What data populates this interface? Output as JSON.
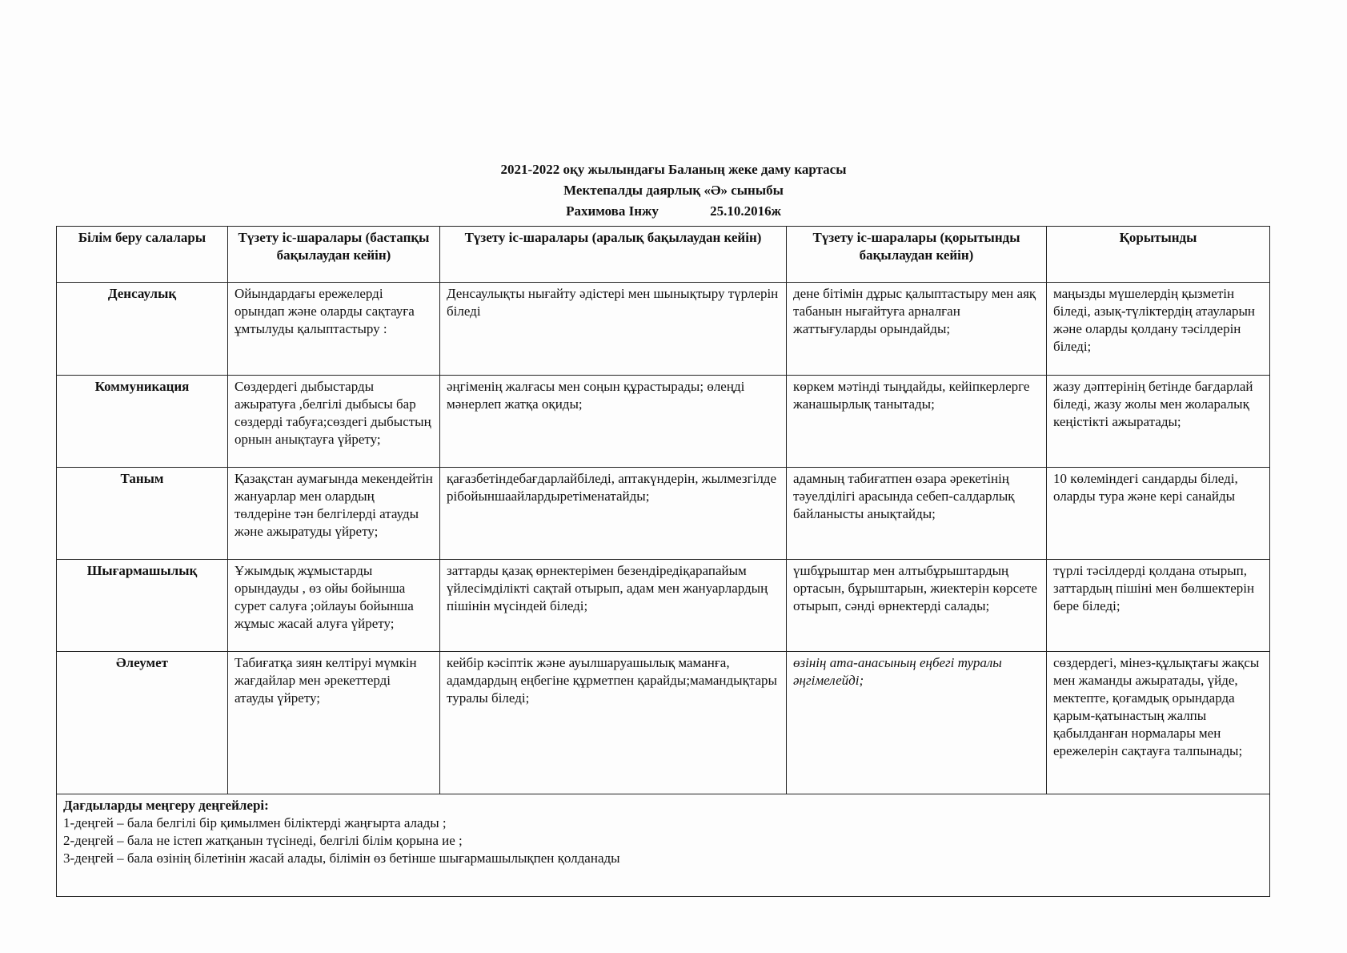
{
  "header": {
    "title": "2021-2022 оқу жылындағы Баланың жеке даму картасы",
    "class_line": "Мектепалды даярлық  «Ә» сыныбы",
    "child_name": "Рахимова Інжу",
    "birth_date": "25.10.2016ж"
  },
  "table": {
    "columns": [
      "Білім беру салалары",
      "Түзету іс-шаралары (бастапқы бақылаудан кейін)",
      "Түзету іс-шаралары (аралық бақылаудан кейін)",
      "Түзету іс-шаралары (қорытынды бақылаудан кейін)",
      "Қорытынды"
    ],
    "rows": [
      {
        "area": "Денсаулық",
        "initial": "Ойындардағы ережелерді орындап және оларды сақтауға  ұмтылуды қалыптастыру :",
        "intermediate": "Денсаулықты нығайту әдістері мен шынықтыру түрлерін біледі",
        "final": "дене бітімін дұрыс қалыптастыру мен аяқ табанын нығайтуға арналған жаттығуларды орындайды;",
        "conclusion": "маңызды мүшелердің қызметін біледі, азық-түліктердің атауларын және оларды қолдану тәсілдерін біледі;"
      },
      {
        "area": "Коммуникация",
        "initial": "Сөздердегі дыбыстарды ажыратуға ,белгілі дыбысы бар сөздерді  табуға;сөздегі дыбыстың орнын анықтауға үйрету;",
        "intermediate": "әңгіменің жалғасы мен соңын құрастырады; өлеңді мәнерлеп жатқа оқиды;",
        "final": "көркем мәтінді тыңдайды, кейіпкерлерге жанашырлық танытады;",
        "conclusion": "жазу дәптерінің бетінде бағдарлай біледі, жазу жолы мен жоларалық кеңістікті ажыратады;"
      },
      {
        "area": "Таным",
        "initial": "Қазақстан аумағында мекендейтін жануарлар мен олардың төлдеріне тән белгілерді атауды және ажыратуды үйрету;",
        "intermediate": "қағазбетіндебағдарлайбіледі, аптакүндерін, жылмезгілдерібойыншаайлардыретіменатайды;",
        "final": "адамның табиғатпен өзара әрекетінің тәуелділігі арасында себеп-салдарлық байланысты анықтайды;",
        "conclusion": "10 көлеміндегі сандарды біледі, оларды тура және кері санайды"
      },
      {
        "area": "Шығармашылық",
        "initial": "Ұжымдық жұмыстарды орындауды , өз ойы бойынша сурет салуға ;ойлауы бойынша жұмыс жасай алуға үйрету;",
        "intermediate": "заттарды қазақ өрнектерімен безендіредіқарапайым үйлесімділікті сақтай отырып, адам мен жануарлардың пішінін мүсіндей біледі;",
        "final": "үшбұрыштар мен алтыбұрыштардың ортасын, бұрыштарын, жиектерін көрсете отырып, сәнді өрнектерді салады;",
        "conclusion": "түрлі тәсілдерді қолдана отырып, заттардың пішіні мен бөлшектерін бере біледі;"
      },
      {
        "area": "Әлеумет",
        "initial": "Табиғатқа зиян келтіруі мүмкін жағдайлар мен әрекеттерді атауды үйрету;",
        "intermediate": "кейбір кәсіптік және ауылшаруашылық маманға, адамдардың еңбегіне құрметпен қарайды;мамандықтары туралы біледі;",
        "final": "өзінің ата-анасының еңбегі туралы әңгімелейді;",
        "conclusion": "сөздердегі, мінез-құлықтағы жақсы мен жаманды ажыратады, үйде, мектепте, қоғамдық орындарда қарым-қатынастың жалпы қабылданған нормалары мен ережелерін сақтауға талпынады;"
      }
    ]
  },
  "levels": {
    "title": "Дағдыларды меңгеру деңгейлері:",
    "items": [
      "1-деңгей – бала белгілі бір қимылмен біліктерді жаңғырта алады ;",
      "2-деңгей – бала не істеп жатқанын түсінеді, белгілі білім қорына ие ;",
      "3-деңгей – бала өзінің білетінін жасай алады, білімін өз бетінше шығармашылықпен қолданады"
    ]
  }
}
